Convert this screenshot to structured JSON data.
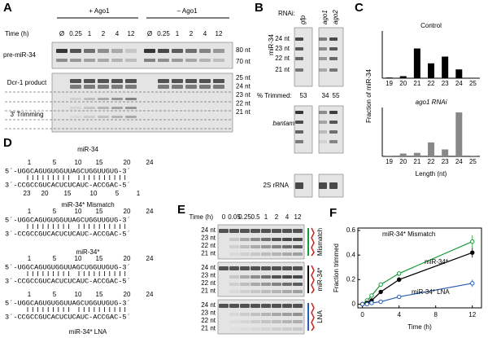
{
  "panel_a": {
    "label": "A",
    "plus": "+ Ago1",
    "minus": "− Ago1",
    "time_label": "Time (h)",
    "lanes": [
      "Ø",
      "0.25",
      "1",
      "2",
      "4",
      "12"
    ],
    "pre_label": "pre-miR-34",
    "dcr_label": "Dcr-1 product",
    "trim_label": "3′ Trimming",
    "sizes_top": [
      "80 nt",
      "70 nt"
    ],
    "sizes_bottom": [
      "25 nt",
      "24 nt",
      "23 nt",
      "22 nt",
      "21 nt"
    ]
  },
  "panel_b": {
    "label": "B",
    "rnai_label": "RNAi:",
    "lanes": [
      "gfp",
      "ago1",
      "ago2"
    ],
    "gel1_label": "miR-34",
    "sizes": [
      "24 nt",
      "23 nt",
      "22 nt",
      "21 nt"
    ],
    "trimmed_label": "% Trimmed:",
    "trimmed": [
      "53",
      "34",
      "55"
    ],
    "gel2_label": "bantam",
    "gel3_label": "2S rRNA"
  },
  "panel_c": {
    "label": "C"
  },
  "panel_d": {
    "label": "D",
    "top_numbers": [
      "1",
      "5",
      "10",
      "15",
      "20",
      "24"
    ],
    "bottom_numbers": [
      "23",
      "20",
      "15",
      "10",
      "5",
      "1"
    ],
    "blocks": [
      {
        "name": "miR-34",
        "seq": "5´-UGGCAGUGUGGUUAGCUGGUUGUG-3´",
        "target": "3´-CCGCCGUCACUCUCAUC-ACCGAC-5´"
      },
      {
        "name": "miR-34* Mismatch",
        "seq": "5´-UGGCAGUGUGGUUAGCUGGUUGUG-3´",
        "target": "3´-CCGCCGUCACUCUCAUC-ACCGAC-5´"
      },
      {
        "name": "miR-34*",
        "seq": "5´-UGGCAGUGUGGUUAGCUGGUUGUG-3´",
        "target": "3´-CCGCCGUCACUCUCAUC-ACCGAC-5´"
      },
      {
        "name": "miR-34* LNA",
        "seq": "5´-UGGCAGUGUGGUUAGCUGGUUGUG-3´",
        "target": "3´-CCGCCGUCACUCUCAUC-ACCGAC-5´"
      }
    ]
  },
  "panel_e": {
    "label": "E",
    "time_label": "Time (h)",
    "lanes": [
      "0",
      "0.05",
      "0.25",
      "0.5",
      "1",
      "2",
      "4",
      "12"
    ],
    "sizes": [
      "24 nt",
      "23 nt",
      "22 nt",
      "21 nt"
    ],
    "side_labels": [
      "Mismatch",
      "miR-34*",
      "LNA"
    ]
  },
  "panel_f": {
    "label": "F"
  },
  "chart_data": [
    {
      "type": "bar",
      "title": "Control",
      "y_label": "Fraction of miR-34",
      "categories": [
        "19",
        "20",
        "21",
        "22",
        "23",
        "24",
        "25"
      ],
      "values": [
        0.01,
        0.03,
        0.44,
        0.22,
        0.32,
        0.13,
        0
      ],
      "color": "#000000",
      "ylim": [
        0,
        0.7
      ]
    },
    {
      "type": "bar",
      "title": "ago1 RNAi",
      "x_label": "Length (nt)",
      "categories": [
        "19",
        "20",
        "21",
        "22",
        "23",
        "24",
        "25"
      ],
      "values": [
        0.01,
        0.04,
        0.05,
        0.2,
        0.1,
        0.63,
        0.01
      ],
      "color": "#888888",
      "ylim": [
        0,
        0.7
      ]
    },
    {
      "type": "line",
      "x_label": "Time (h)",
      "y_label": "Fraction trimmed",
      "x": [
        0,
        0.5,
        1,
        2,
        4,
        12
      ],
      "xlim": [
        -0.5,
        13
      ],
      "xticks": [
        0,
        4,
        8,
        12
      ],
      "ylim": [
        -0.03,
        0.62
      ],
      "yticks": [
        0,
        0.2,
        0.4,
        0.6
      ],
      "series": [
        {
          "name": "miR-34* Mismatch",
          "color": "#1a9a3a",
          "values": [
            0,
            0.03,
            0.07,
            0.16,
            0.25,
            0.51
          ],
          "errors": [
            0.01,
            0.01,
            0.01,
            0.01,
            0.02,
            0.05
          ]
        },
        {
          "name": "miR-34*",
          "color": "#000000",
          "values": [
            0,
            0.01,
            0.03,
            0.1,
            0.2,
            0.42
          ],
          "errors": [
            0.01,
            0.01,
            0.01,
            0.01,
            0.02,
            0.04
          ]
        },
        {
          "name": "miR-34* LNA",
          "color": "#2a5db0",
          "values": [
            0,
            0,
            0.01,
            0.02,
            0.06,
            0.17
          ],
          "errors": [
            0.01,
            0.01,
            0.01,
            0.01,
            0.01,
            0.03
          ]
        }
      ]
    }
  ]
}
